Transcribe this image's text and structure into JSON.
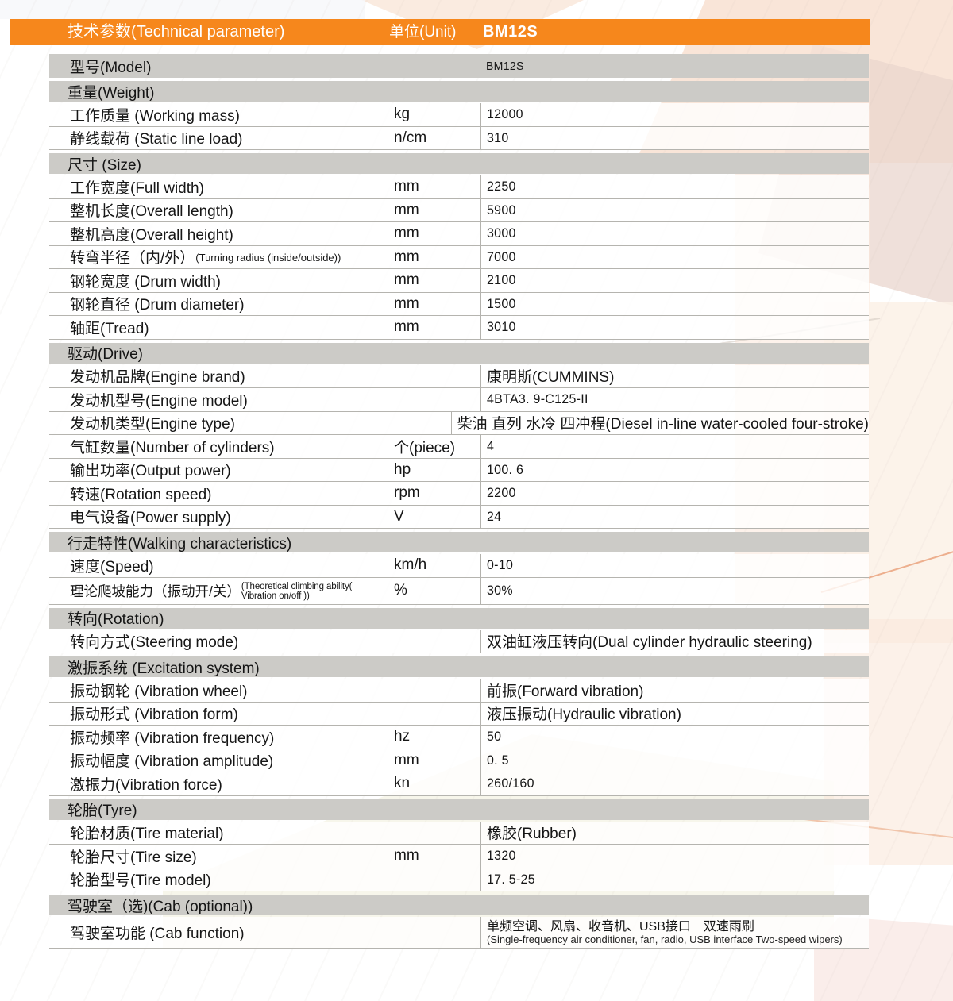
{
  "title_bar": {
    "title": "技术参数(Technical parameter)",
    "unit_label": "单位(Unit)",
    "model_code": "BM12S"
  },
  "colors": {
    "accent_orange": "#F6871C",
    "section_gray": "#CCCBC7"
  },
  "table": {
    "sections": [
      {
        "header": null,
        "rows": [
          {
            "label": "型号(Model)",
            "unit": "",
            "value": "BM12S"
          }
        ]
      },
      {
        "header": "重量(Weight)",
        "rows": [
          {
            "label": "工作质量 (Working mass)",
            "unit": "kg",
            "value": "12000"
          },
          {
            "label": "静线载荷 (Static line load)",
            "unit": "n/cm",
            "value": "310"
          }
        ]
      },
      {
        "header": "尺寸 (Size)",
        "rows": [
          {
            "label": "工作宽度(Full width)",
            "unit": "mm",
            "value": "2250"
          },
          {
            "label": "整机长度(Overall length)",
            "unit": "mm",
            "value": "5900"
          },
          {
            "label": "整机高度(Overall height)",
            "unit": "mm",
            "value": "3000"
          },
          {
            "label": "转弯半径（内/外）",
            "label_small": "(Turning radius (inside/outside))",
            "unit": "mm",
            "value": "7000"
          },
          {
            "label": "钢轮宽度 (Drum width)",
            "unit": "mm",
            "value": "2100"
          },
          {
            "label": "钢轮直径 (Drum diameter)",
            "unit": "mm",
            "value": "1500"
          },
          {
            "label": "轴距(Tread)",
            "unit": "mm",
            "value": "3010"
          }
        ]
      },
      {
        "header": "驱动(Drive)",
        "rows": [
          {
            "label": "发动机品牌(Engine brand)",
            "unit": "",
            "value": "康明斯(CUMMINS)"
          },
          {
            "label": "发动机型号(Engine model)",
            "unit": "",
            "value": "4BTA3. 9-C125-II"
          },
          {
            "label": "发动机类型(Engine type)",
            "unit": "",
            "value": "柴油 直列 水冷 四冲程(Diesel in-line water-cooled four-stroke)"
          },
          {
            "label": "气缸数量(Number of cylinders)",
            "unit": "个(piece)",
            "value": "4"
          },
          {
            "label": "输出功率(Output power)",
            "unit": "hp",
            "value": "100. 6"
          },
          {
            "label": "转速(Rotation speed)",
            "unit": "rpm",
            "value": "2200"
          },
          {
            "label": "电气设备(Power supply)",
            "unit": "V",
            "value": "24"
          }
        ]
      },
      {
        "header": "行走特性(Walking characteristics)",
        "rows": [
          {
            "label": "速度(Speed)",
            "unit": "km/h",
            "value": "0-10"
          },
          {
            "label": "理论爬坡能力（振动开/关）",
            "label_small": "(Theoretical climbing ability( Vibration on/off ))",
            "unit": "%",
            "value": "30%"
          }
        ]
      },
      {
        "header": "转向(Rotation)",
        "rows": [
          {
            "label": "转向方式(Steering mode)",
            "unit": "",
            "value": "双油缸液压转向(Dual cylinder hydraulic steering)"
          }
        ]
      },
      {
        "header": "激振系统 (Excitation system)",
        "rows": [
          {
            "label": "振动钢轮 (Vibration wheel)",
            "unit": "",
            "value": "前振(Forward vibration)"
          },
          {
            "label": "振动形式 (Vibration form)",
            "unit": "",
            "value": "液压振动(Hydraulic vibration)"
          },
          {
            "label": "振动频率 (Vibration frequency)",
            "unit": "hz",
            "value": "50"
          },
          {
            "label": "振动幅度 (Vibration amplitude)",
            "unit": "mm",
            "value": "0. 5"
          },
          {
            "label": "激振力(Vibration force)",
            "unit": "kn",
            "value": "260/160"
          }
        ]
      },
      {
        "header": "轮胎(Tyre)",
        "rows": [
          {
            "label": "轮胎材质(Tire material)",
            "unit": "",
            "value": "橡胶(Rubber)"
          },
          {
            "label": "轮胎尺寸(Tire size)",
            "unit": "mm",
            "value": "1320"
          },
          {
            "label": "轮胎型号(Tire model)",
            "unit": "",
            "value": "17. 5-25"
          }
        ]
      },
      {
        "header": "驾驶室（选)(Cab (optional))",
        "rows": [
          {
            "label": "驾驶室功能 (Cab function)",
            "unit": "",
            "value": "单频空调、风扇、收音机、USB接口　双速雨刷",
            "value_sub": "(Single-frequency air conditioner, fan, radio, USB interface Two-speed wipers)"
          }
        ]
      }
    ]
  }
}
